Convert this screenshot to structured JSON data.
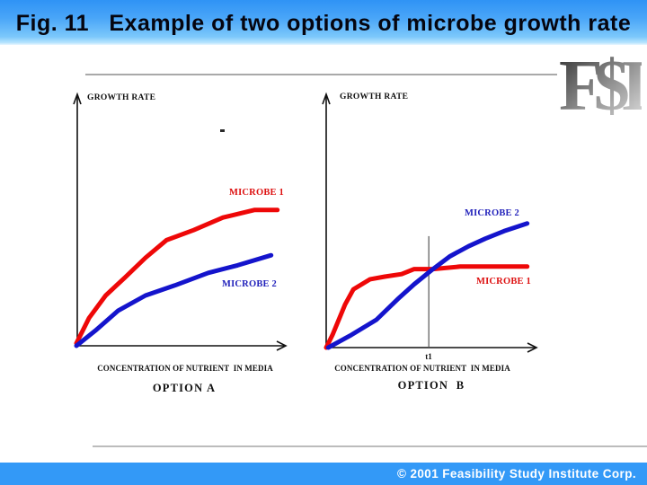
{
  "header": {
    "title": "Fig. 11   Example of two options of microbe growth rate"
  },
  "logo": {
    "text": "F$I"
  },
  "footer": {
    "copyright": "© 2001 Feasibility Study Institute Corp."
  },
  "colors": {
    "header_blue_top": "#2f93f5",
    "header_blue_bottom": "#b7e4fe",
    "footer_blue": "#3399f7",
    "microbe1_red": "#ee0808",
    "microbe2_blue": "#1414cc",
    "axis_black": "#111111",
    "divider_gray": "#a9a9a9"
  },
  "chart_data": [
    {
      "type": "line",
      "option_label": "OPTION A",
      "ylabel": "GROWTH RATE",
      "xlabel": "CONCENTRATION OF NUTRIENT  IN MEDIA",
      "axes_numeric": false,
      "x_range_pct": [
        0,
        100
      ],
      "y_range_pct": [
        0,
        100
      ],
      "series": [
        {
          "name": "MICROBE 1",
          "color": "#ee0808",
          "x": [
            0,
            6,
            14,
            23,
            33,
            43,
            56,
            70,
            85,
            96
          ],
          "y": [
            1,
            11,
            20,
            27,
            35,
            42,
            46,
            51,
            54,
            54
          ]
        },
        {
          "name": "MICROBE 2",
          "color": "#1414cc",
          "x": [
            0,
            9,
            20,
            33,
            47,
            63,
            77,
            93
          ],
          "y": [
            0,
            6,
            14,
            20,
            24,
            29,
            32,
            36
          ]
        }
      ],
      "annotations": [],
      "description": "Both microbes rise from the origin and begin to saturate; MICROBE 1 grows faster and saturates higher than MICROBE 2."
    },
    {
      "type": "line",
      "option_label": "OPTION  B",
      "ylabel": "GROWTH RATE",
      "xlabel": "CONCENTRATION OF NUTRIENT  IN MEDIA",
      "axes_numeric": false,
      "x_range_pct": [
        0,
        100
      ],
      "y_range_pct": [
        0,
        100
      ],
      "series": [
        {
          "name": "MICROBE 1",
          "color": "#ee0808",
          "x": [
            0,
            3,
            6,
            9,
            13,
            21,
            28,
            36,
            42,
            51,
            64,
            79,
            96
          ],
          "y": [
            0,
            5,
            11,
            17,
            23,
            27,
            28,
            29,
            31,
            31,
            32,
            32,
            32
          ]
        },
        {
          "name": "MICROBE 2",
          "color": "#1414cc",
          "x": [
            1,
            12,
            24,
            34,
            42,
            51,
            59,
            68,
            76,
            85,
            96
          ],
          "y": [
            0,
            5,
            11,
            19,
            25,
            31,
            36,
            40,
            43,
            46,
            49
          ]
        }
      ],
      "annotations": [
        {
          "label": "t1",
          "x_pct": 49,
          "line_top_pct": 44
        }
      ],
      "description": "MICROBE 1 saturates early at a low level; MICROBE 2 rises steadily and overtakes MICROBE 1 at concentration t1."
    }
  ]
}
